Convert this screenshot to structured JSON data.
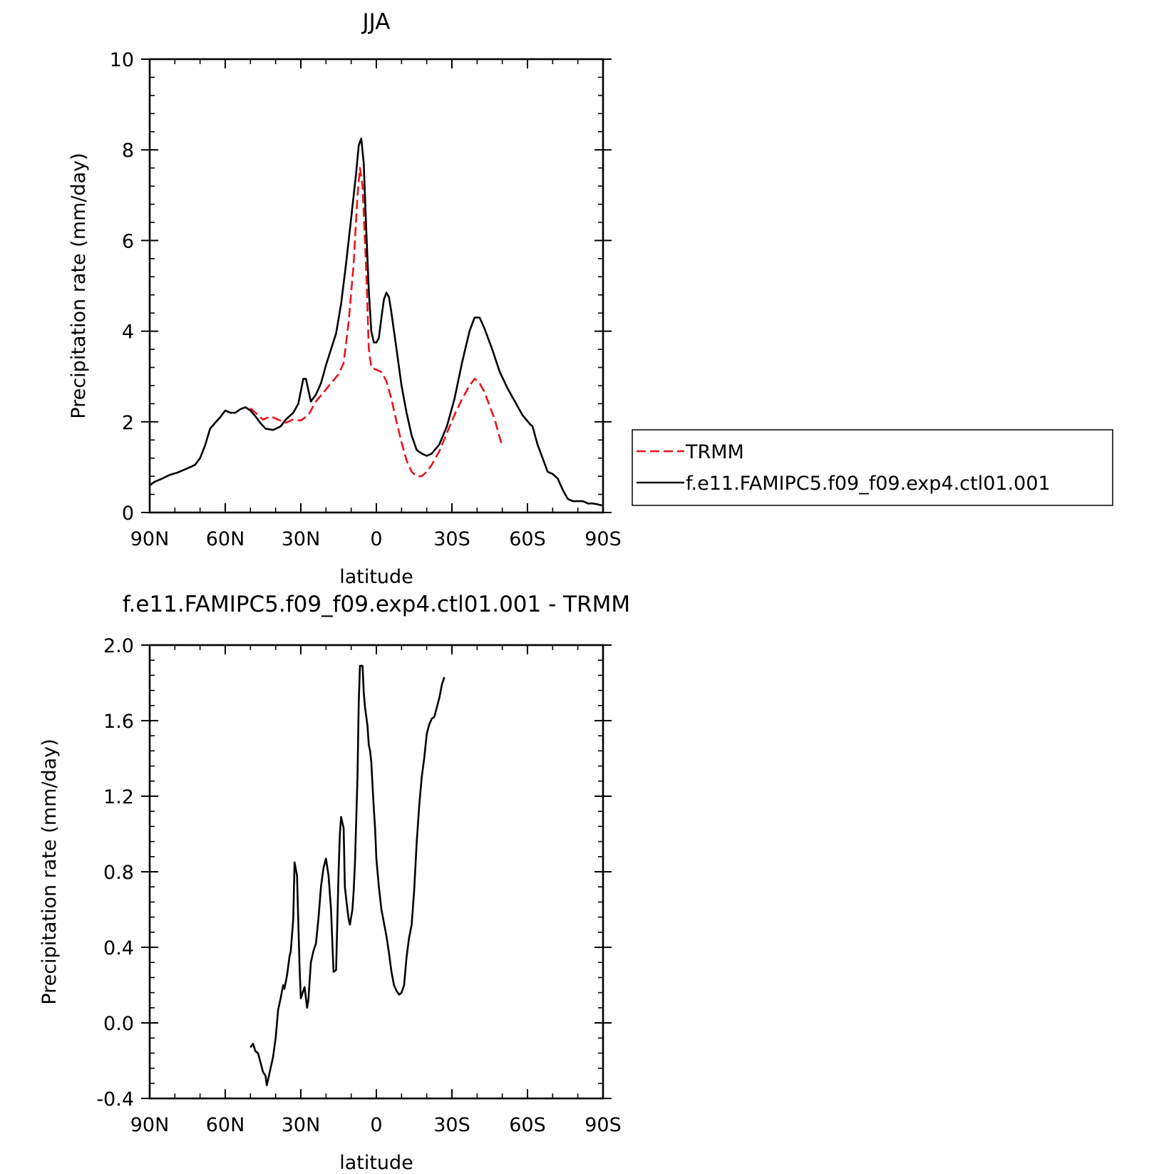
{
  "chart_data": [
    {
      "type": "line",
      "title": "JJA",
      "xlabel": "latitude",
      "ylabel": "Precipitation rate (mm/day)",
      "xlim": [
        90,
        -90
      ],
      "ylim": [
        0,
        10
      ],
      "x_ticks": [
        90,
        60,
        30,
        0,
        -30,
        -60,
        -90
      ],
      "x_tick_labels": [
        "90N",
        "60N",
        "30N",
        "0",
        "30S",
        "60S",
        "90S"
      ],
      "y_ticks": [
        0,
        2,
        4,
        6,
        8,
        10
      ],
      "y_tick_labels": [
        "0",
        "2",
        "4",
        "6",
        "8",
        "10"
      ],
      "legend_position": "right",
      "grid": false,
      "series": [
        {
          "name": "TRMM",
          "color": "#e8141c",
          "style": "dashed",
          "points": [
            [
              50,
              2.3
            ],
            [
              48,
              2.2
            ],
            [
              45,
              2.05
            ],
            [
              42,
              2.12
            ],
            [
              39,
              2.05
            ],
            [
              36,
              1.98
            ],
            [
              33,
              2.05
            ],
            [
              30,
              2.03
            ],
            [
              27,
              2.15
            ],
            [
              24,
              2.45
            ],
            [
              21,
              2.65
            ],
            [
              18,
              2.85
            ],
            [
              15,
              3.05
            ],
            [
              13,
              3.3
            ],
            [
              11,
              4.2
            ],
            [
              9,
              5.5
            ],
            [
              7.5,
              7.0
            ],
            [
              6.5,
              7.6
            ],
            [
              5.5,
              7.2
            ],
            [
              4,
              5.3
            ],
            [
              3,
              3.6
            ],
            [
              2,
              3.2
            ],
            [
              0,
              3.15
            ],
            [
              -2,
              3.1
            ],
            [
              -4,
              2.9
            ],
            [
              -6,
              2.5
            ],
            [
              -8,
              2.0
            ],
            [
              -10,
              1.55
            ],
            [
              -12,
              1.15
            ],
            [
              -14,
              0.9
            ],
            [
              -16,
              0.8
            ],
            [
              -18,
              0.8
            ],
            [
              -20,
              0.9
            ],
            [
              -22,
              1.05
            ],
            [
              -25,
              1.35
            ],
            [
              -28,
              1.75
            ],
            [
              -31,
              2.15
            ],
            [
              -34,
              2.5
            ],
            [
              -37,
              2.8
            ],
            [
              -39,
              2.95
            ],
            [
              -41,
              2.85
            ],
            [
              -43,
              2.65
            ],
            [
              -45,
              2.35
            ],
            [
              -47,
              2.05
            ],
            [
              -50,
              1.45
            ]
          ]
        },
        {
          "name": "f.e11.FAMIPC5.f09_f09.exp4.ctl01.001",
          "color": "#000000",
          "style": "solid",
          "points": [
            [
              90,
              0.6
            ],
            [
              88,
              0.68
            ],
            [
              85,
              0.75
            ],
            [
              82,
              0.83
            ],
            [
              79,
              0.88
            ],
            [
              76,
              0.95
            ],
            [
              74,
              1.0
            ],
            [
              72,
              1.05
            ],
            [
              70,
              1.2
            ],
            [
              68,
              1.48
            ],
            [
              66,
              1.85
            ],
            [
              64,
              1.98
            ],
            [
              62,
              2.1
            ],
            [
              60,
              2.25
            ],
            [
              58,
              2.2
            ],
            [
              56,
              2.2
            ],
            [
              54,
              2.28
            ],
            [
              52,
              2.32
            ],
            [
              50,
              2.25
            ],
            [
              48,
              2.12
            ],
            [
              46,
              1.97
            ],
            [
              44,
              1.85
            ],
            [
              41,
              1.82
            ],
            [
              38,
              1.9
            ],
            [
              36,
              2.05
            ],
            [
              33,
              2.2
            ],
            [
              31,
              2.4
            ],
            [
              29,
              2.95
            ],
            [
              28,
              2.95
            ],
            [
              26,
              2.45
            ],
            [
              24,
              2.6
            ],
            [
              22,
              2.85
            ],
            [
              20,
              3.25
            ],
            [
              18,
              3.6
            ],
            [
              16,
              3.95
            ],
            [
              14,
              4.6
            ],
            [
              12,
              5.5
            ],
            [
              10,
              6.5
            ],
            [
              8,
              7.5
            ],
            [
              7,
              8.1
            ],
            [
              6,
              8.25
            ],
            [
              5,
              7.7
            ],
            [
              4,
              6.2
            ],
            [
              3,
              4.9
            ],
            [
              2,
              4.0
            ],
            [
              1,
              3.75
            ],
            [
              0,
              3.75
            ],
            [
              -1,
              3.85
            ],
            [
              -2,
              4.3
            ],
            [
              -3,
              4.7
            ],
            [
              -4,
              4.85
            ],
            [
              -5,
              4.75
            ],
            [
              -6,
              4.4
            ],
            [
              -8,
              3.6
            ],
            [
              -10,
              2.8
            ],
            [
              -12,
              2.2
            ],
            [
              -14,
              1.7
            ],
            [
              -16,
              1.38
            ],
            [
              -18,
              1.3
            ],
            [
              -20,
              1.25
            ],
            [
              -22,
              1.3
            ],
            [
              -25,
              1.5
            ],
            [
              -28,
              1.9
            ],
            [
              -31,
              2.5
            ],
            [
              -34,
              3.3
            ],
            [
              -37,
              4.0
            ],
            [
              -39,
              4.3
            ],
            [
              -41,
              4.3
            ],
            [
              -43,
              4.05
            ],
            [
              -46,
              3.6
            ],
            [
              -49,
              3.1
            ],
            [
              -52,
              2.75
            ],
            [
              -55,
              2.45
            ],
            [
              -58,
              2.15
            ],
            [
              -61,
              1.95
            ],
            [
              -62,
              1.9
            ],
            [
              -64,
              1.5
            ],
            [
              -66,
              1.2
            ],
            [
              -68,
              0.9
            ],
            [
              -70,
              0.85
            ],
            [
              -72,
              0.75
            ],
            [
              -74,
              0.5
            ],
            [
              -76,
              0.3
            ],
            [
              -78,
              0.25
            ],
            [
              -80,
              0.25
            ],
            [
              -82,
              0.25
            ],
            [
              -84,
              0.2
            ],
            [
              -86,
              0.2
            ],
            [
              -88,
              0.18
            ],
            [
              -90,
              0.15
            ]
          ]
        }
      ],
      "legend": [
        "TRMM",
        "f.e11.FAMIPC5.f09_f09.exp4.ctl01.001"
      ]
    },
    {
      "type": "line",
      "title": "f.e11.FAMIPC5.f09_f09.exp4.ctl01.001 - TRMM",
      "xlabel": "latitude",
      "ylabel": "Precipitation rate (mm/day)",
      "xlim": [
        90,
        -90
      ],
      "ylim": [
        -0.4,
        2.0
      ],
      "x_ticks": [
        90,
        60,
        30,
        0,
        -30,
        -60,
        -90
      ],
      "x_tick_labels": [
        "90N",
        "60N",
        "30N",
        "0",
        "30S",
        "60S",
        "90S"
      ],
      "y_ticks": [
        -0.4,
        0.0,
        0.4,
        0.8,
        1.2,
        1.6,
        2.0
      ],
      "y_tick_labels": [
        "-0.4",
        "0.0",
        "0.4",
        "0.8",
        "1.2",
        "1.6",
        "2.0"
      ],
      "grid": false,
      "series": [
        {
          "color": "#000000",
          "style": "solid",
          "points": [
            [
              50,
              -0.13
            ],
            [
              49,
              -0.11
            ],
            [
              48,
              -0.15
            ],
            [
              47,
              -0.16
            ],
            [
              46,
              -0.21
            ],
            [
              45,
              -0.26
            ],
            [
              44,
              -0.28
            ],
            [
              43.5,
              -0.33
            ],
            [
              43,
              -0.3
            ],
            [
              42,
              -0.24
            ],
            [
              41,
              -0.18
            ],
            [
              40,
              -0.08
            ],
            [
              39,
              0.07
            ],
            [
              38,
              0.13
            ],
            [
              37,
              0.2
            ],
            [
              36.5,
              0.18
            ],
            [
              35.5,
              0.25
            ],
            [
              34.5,
              0.35
            ],
            [
              34,
              0.38
            ],
            [
              33,
              0.55
            ],
            [
              32.5,
              0.85
            ],
            [
              31.5,
              0.78
            ],
            [
              30.5,
              0.3
            ],
            [
              30,
              0.13
            ],
            [
              29,
              0.17
            ],
            [
              28.5,
              0.19
            ],
            [
              27.5,
              0.08
            ],
            [
              27,
              0.12
            ],
            [
              26,
              0.32
            ],
            [
              25,
              0.38
            ],
            [
              24,
              0.42
            ],
            [
              23,
              0.55
            ],
            [
              22,
              0.72
            ],
            [
              21,
              0.82
            ],
            [
              20,
              0.87
            ],
            [
              19,
              0.78
            ],
            [
              18,
              0.6
            ],
            [
              17,
              0.27
            ],
            [
              16,
              0.28
            ],
            [
              15,
              0.8
            ],
            [
              14.5,
              1.0
            ],
            [
              14,
              1.09
            ],
            [
              13,
              1.03
            ],
            [
              12.5,
              0.72
            ],
            [
              11.5,
              0.6
            ],
            [
              11,
              0.55
            ],
            [
              10.5,
              0.52
            ],
            [
              9.5,
              0.6
            ],
            [
              9,
              0.7
            ],
            [
              8.5,
              0.85
            ],
            [
              7.5,
              1.3
            ],
            [
              7,
              1.7
            ],
            [
              6.5,
              1.89
            ],
            [
              5.5,
              1.89
            ],
            [
              5,
              1.75
            ],
            [
              4.5,
              1.67
            ],
            [
              4,
              1.62
            ],
            [
              3.5,
              1.57
            ],
            [
              3,
              1.47
            ],
            [
              2.5,
              1.44
            ],
            [
              2,
              1.38
            ],
            [
              1.5,
              1.25
            ],
            [
              1,
              1.13
            ],
            [
              0.5,
              1.03
            ],
            [
              0,
              0.87
            ],
            [
              -1,
              0.72
            ],
            [
              -2,
              0.6
            ],
            [
              -3,
              0.53
            ],
            [
              -4,
              0.46
            ],
            [
              -5,
              0.37
            ],
            [
              -6,
              0.27
            ],
            [
              -7,
              0.2
            ],
            [
              -8,
              0.17
            ],
            [
              -9,
              0.15
            ],
            [
              -10,
              0.16
            ],
            [
              -11,
              0.2
            ],
            [
              -12,
              0.35
            ],
            [
              -13,
              0.45
            ],
            [
              -14,
              0.52
            ],
            [
              -15,
              0.7
            ],
            [
              -16,
              0.95
            ],
            [
              -17,
              1.15
            ],
            [
              -18,
              1.3
            ],
            [
              -19,
              1.4
            ],
            [
              -20,
              1.53
            ],
            [
              -21,
              1.58
            ],
            [
              -22,
              1.61
            ],
            [
              -23,
              1.62
            ],
            [
              -24,
              1.67
            ],
            [
              -25,
              1.72
            ],
            [
              -26,
              1.79
            ],
            [
              -27,
              1.83
            ]
          ]
        }
      ]
    }
  ]
}
